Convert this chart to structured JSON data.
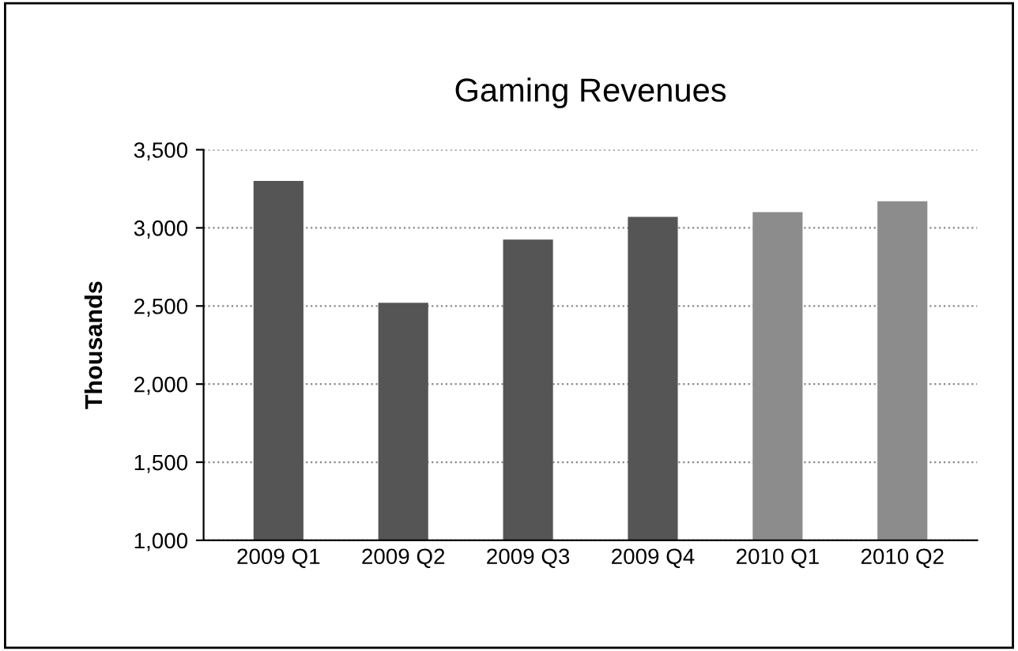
{
  "chart_data": {
    "type": "bar",
    "title": "Gaming Revenues",
    "ylabel": "Thousands",
    "categories": [
      "2009 Q1",
      "2009 Q2",
      "2009 Q3",
      "2009 Q4",
      "2010 Q1",
      "2010 Q2"
    ],
    "values": [
      3300,
      2520,
      2925,
      3070,
      3100,
      3170
    ],
    "colors": [
      "#555555",
      "#555555",
      "#555555",
      "#555555",
      "#8c8c8c",
      "#8c8c8c"
    ],
    "ylim": [
      1000,
      3500
    ],
    "yticks": [
      {
        "value": 1000,
        "label": "1,000"
      },
      {
        "value": 1500,
        "label": "1,500"
      },
      {
        "value": 2000,
        "label": "2,000"
      },
      {
        "value": 2500,
        "label": "2,500"
      },
      {
        "value": 3000,
        "label": "3,000"
      },
      {
        "value": 3500,
        "label": "3,500"
      }
    ],
    "grid": "y"
  }
}
